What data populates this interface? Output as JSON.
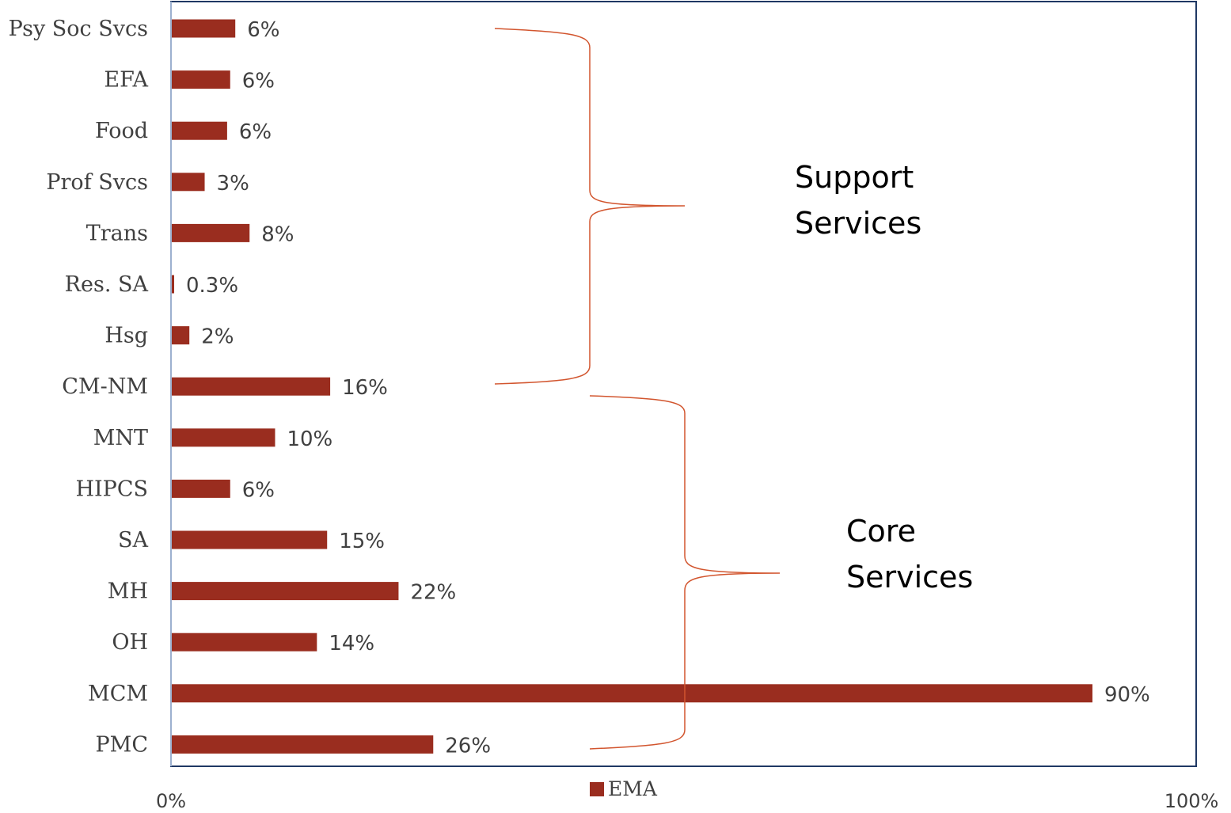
{
  "chart_data": {
    "type": "bar",
    "orientation": "horizontal",
    "categories": [
      "Psy Soc Svcs",
      "EFA",
      "Food",
      "Prof Svcs",
      "Trans",
      "Res. SA",
      "Hsg",
      "CM-NM",
      "MNT",
      "HIPCS",
      "SA",
      "MH",
      "OH",
      "MCM",
      "PMC"
    ],
    "series": [
      {
        "name": "EMA",
        "values": [
          6.3,
          5.8,
          5.5,
          3.3,
          7.7,
          0.3,
          1.8,
          15.6,
          10.2,
          5.8,
          15.3,
          22.3,
          14.3,
          90.3,
          25.7
        ],
        "labels": [
          "6%",
          "6%",
          "6%",
          "3%",
          "8%",
          "0.3%",
          "2%",
          "16%",
          "10%",
          "6%",
          "15%",
          "22%",
          "14%",
          "90%",
          "26%"
        ]
      }
    ],
    "xlim": [
      0,
      100
    ],
    "x_ticks": [
      "0%",
      "100%"
    ],
    "grid": false,
    "legend": "bottom-center",
    "colors": {
      "bar": "#9a2d1f",
      "bracket": "#d2552e",
      "axis_frame": "#1f3864"
    },
    "annotations": [
      {
        "name": "support-services",
        "lines": [
          "Support",
          "Services"
        ],
        "categories_spanned": [
          "Psy Soc Svcs",
          "CM-NM"
        ]
      },
      {
        "name": "core-services",
        "lines": [
          "Core",
          "Services"
        ],
        "categories_spanned": [
          "CM-NM",
          "PMC"
        ]
      }
    ]
  }
}
